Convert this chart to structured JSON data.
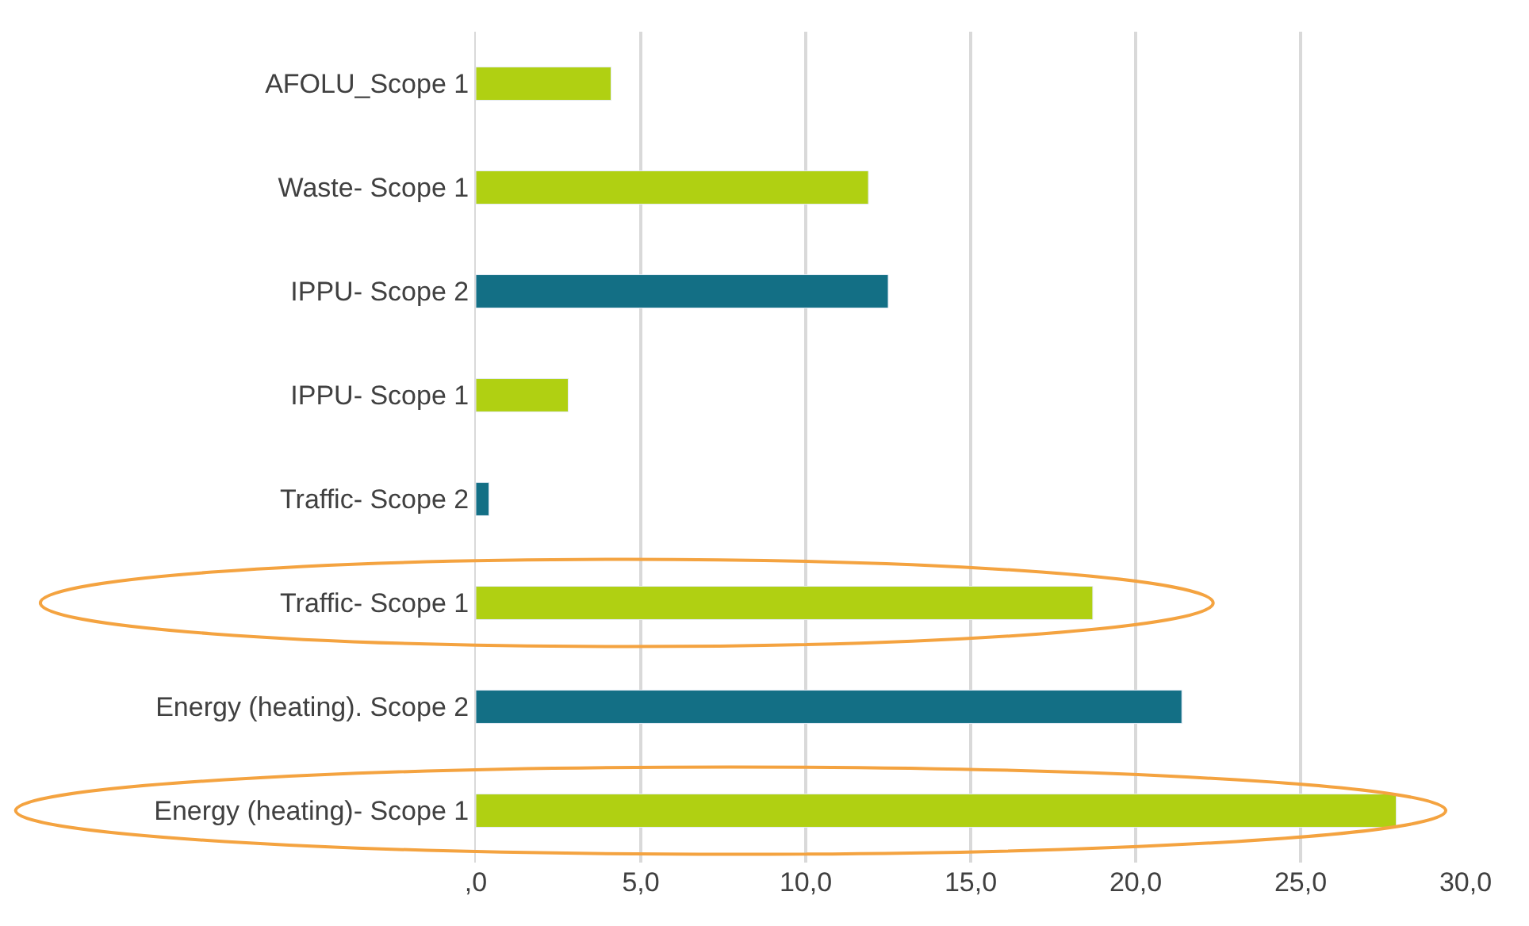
{
  "chart_data": {
    "type": "bar",
    "orientation": "horizontal",
    "categories": [
      "AFOLU_Scope 1",
      "Waste- Scope 1",
      "IPPU- Scope 2",
      "IPPU- Scope 1",
      "Traffic- Scope 2",
      "Traffic- Scope 1",
      "Energy (heating). Scope 2",
      "Energy (heating)- Scope 1"
    ],
    "values": [
      4.1,
      11.9,
      12.5,
      2.8,
      0.4,
      18.7,
      21.4,
      27.9
    ],
    "colors": [
      "#b0d012",
      "#b0d012",
      "#136f85",
      "#b0d012",
      "#136f85",
      "#b0d012",
      "#136f85",
      "#b0d012"
    ],
    "xlim": [
      0,
      30
    ],
    "xticks": [
      {
        "value": 0,
        "label": ",0"
      },
      {
        "value": 5,
        "label": "5,0"
      },
      {
        "value": 10,
        "label": "10,0"
      },
      {
        "value": 15,
        "label": "15,0"
      },
      {
        "value": 20,
        "label": "20,0"
      },
      {
        "value": 25,
        "label": "25,0"
      },
      {
        "value": 30,
        "label": "30,0"
      }
    ],
    "grid": "x"
  }
}
